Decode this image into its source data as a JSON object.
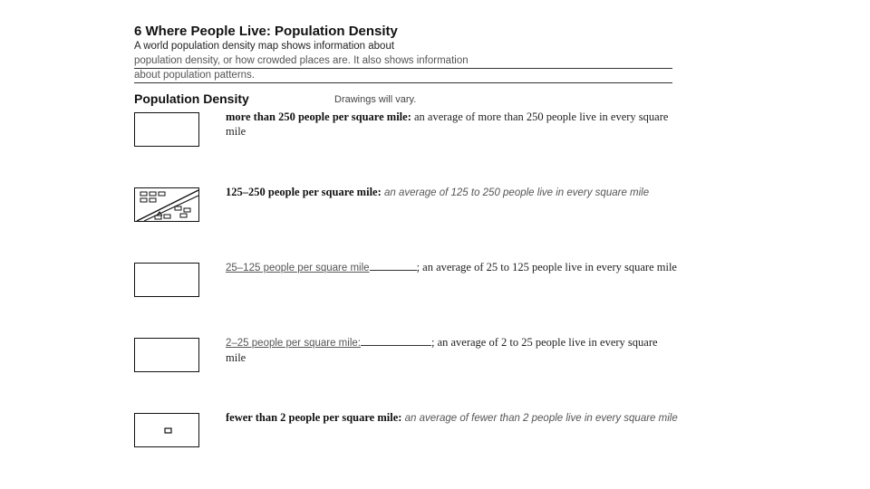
{
  "worksheet": {
    "title": "6 Where People Live: Population Density",
    "intro": {
      "line1": "A world population density map shows information about",
      "line2": "population density, or how crowded places are. It also shows information",
      "line3": "about population patterns."
    },
    "section_title": "Population Density",
    "section_note": "Drawings will vary.",
    "rows": [
      {
        "term": "more than 250 people per square mile:",
        "text": " an average of more than 250 people live in every square mile",
        "drawing": "empty-box"
      },
      {
        "term": "125–250 people per square mile:",
        "text": " an average of 125 to 250 people live in every square mile",
        "drawing": "houses-and-roads-sketch"
      },
      {
        "term": "25–125 people per square mile",
        "text": "; an average of 25 to 125 people live in every square mile",
        "drawing": "empty-box"
      },
      {
        "term": "2–25 people per square mile:",
        "text": "; an average of 2 to 25 people live in every square mile",
        "drawing": "empty-box"
      },
      {
        "term": "fewer than 2 people per square mile:",
        "text": " an average of fewer than 2 people live in every square mile",
        "drawing": "single-small-square"
      }
    ]
  }
}
